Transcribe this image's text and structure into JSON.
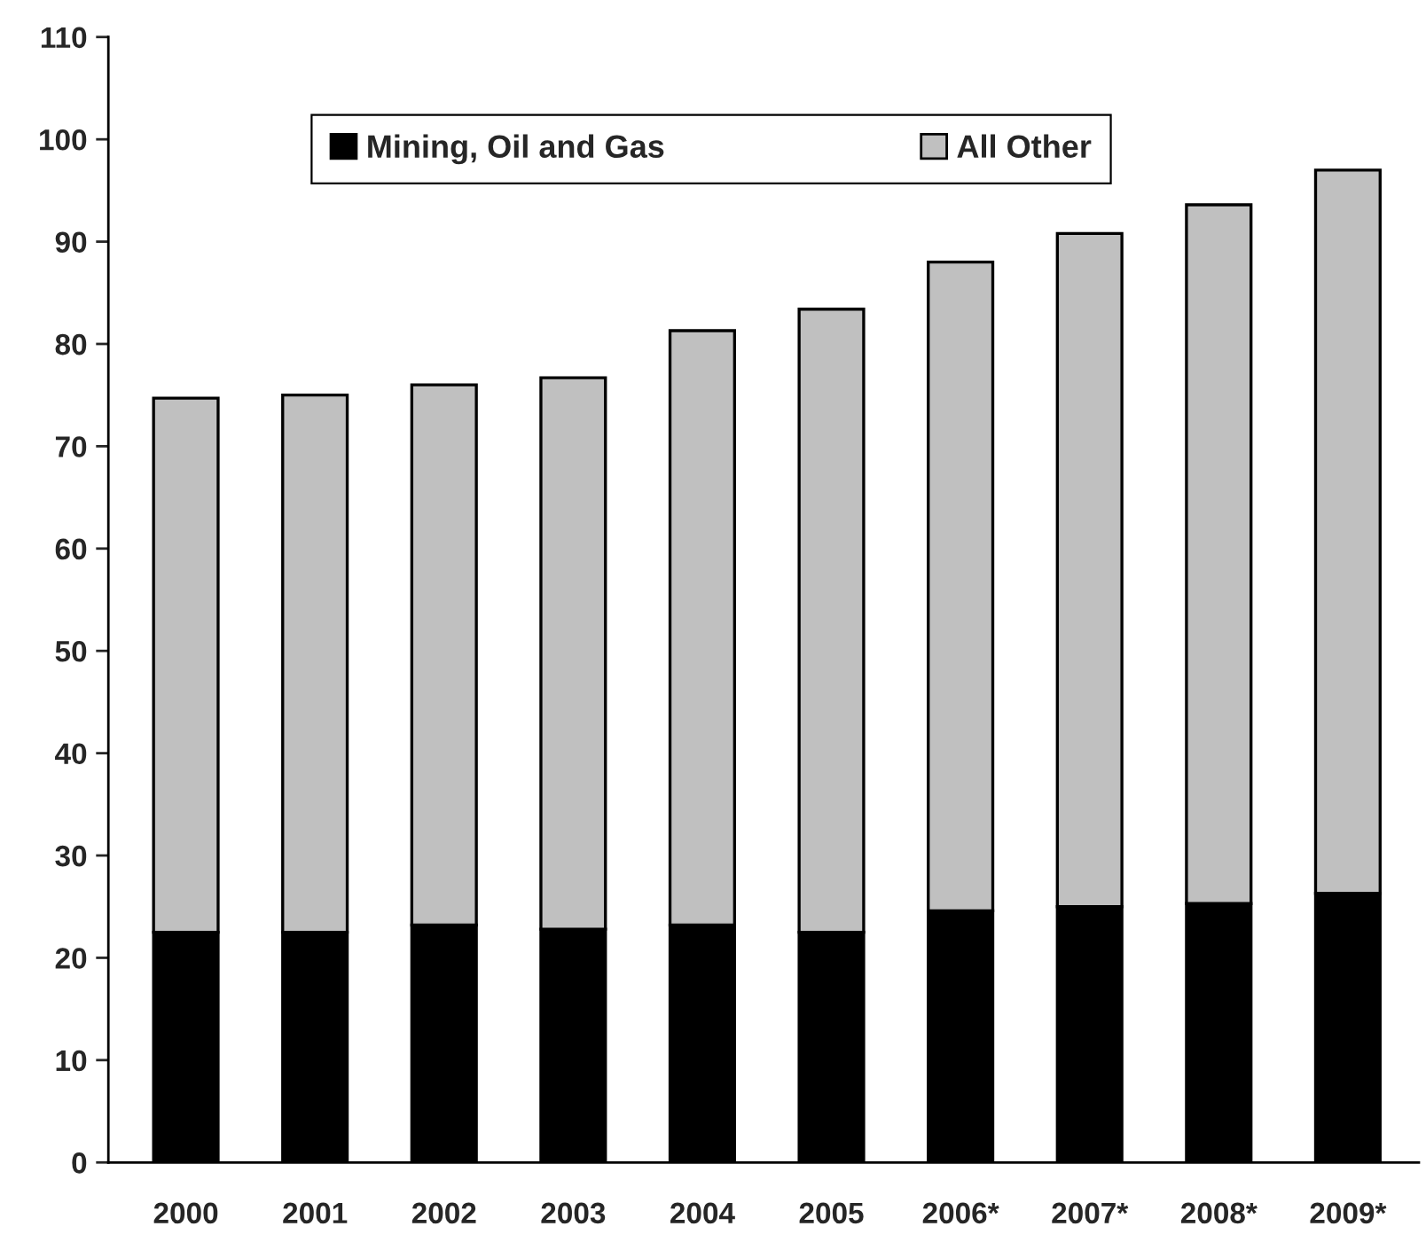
{
  "chart_data": {
    "type": "bar",
    "stacked": true,
    "categories": [
      "2000",
      "2001",
      "2002",
      "2003",
      "2004",
      "2005",
      "2006*",
      "2007*",
      "2008*",
      "2009*"
    ],
    "series": [
      {
        "name": "Mining, Oil and Gas",
        "color": "#000000",
        "values": [
          22.5,
          22.5,
          23.2,
          22.8,
          23.2,
          22.5,
          24.6,
          25.0,
          25.3,
          26.3
        ]
      },
      {
        "name": "All Other",
        "color": "#c0c0c0",
        "values": [
          52.2,
          52.5,
          52.8,
          53.9,
          58.1,
          60.9,
          63.4,
          65.8,
          68.3,
          70.7
        ]
      }
    ],
    "ylim": [
      0,
      110
    ],
    "yticks": [
      0,
      10,
      20,
      30,
      40,
      50,
      60,
      70,
      80,
      90,
      100,
      110
    ],
    "grid": false,
    "legend": "top"
  }
}
